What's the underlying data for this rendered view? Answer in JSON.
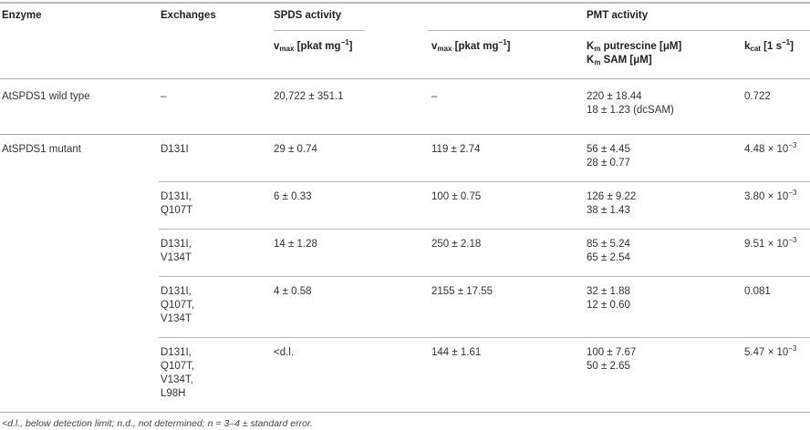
{
  "headers": {
    "enzyme": "Enzyme",
    "exchanges": "Exchanges",
    "spds": "SPDS activity",
    "pmt": "PMT activity",
    "vmax_v": "v",
    "vmax_sub": "max",
    "vmax_unit": " [pkat mg",
    "vmax_sup": "−1",
    "vmax_close": "]",
    "km_k": "K",
    "km_sub": "m",
    "km_put": " putrescine [μM]",
    "km_sam": " SAM [μM]",
    "kcat_k": "k",
    "kcat_sub": "cat",
    "kcat_unit": " [1 s",
    "kcat_sup": "−1",
    "kcat_close": "]"
  },
  "rows": [
    {
      "enzyme": "AtSPDS1 wild type",
      "exchanges": [
        "–"
      ],
      "spds_vmax": "20,722 ± 351.1",
      "pmt_vmax": "–",
      "km_put": "220 ± 18.44",
      "km_sam": "18 ± 1.23 (dcSAM)",
      "kcat": "0.722",
      "kcat_exp": ""
    },
    {
      "enzyme": "AtSPDS1 mutant",
      "exchanges": [
        "D131I"
      ],
      "spds_vmax": "29 ± 0.74",
      "pmt_vmax": "119 ± 2.74",
      "km_put": "56 ± 4.45",
      "km_sam": "28 ± 0.77",
      "kcat": "4.48 × 10",
      "kcat_exp": "−3"
    },
    {
      "exchanges": [
        "D131I,",
        "Q107T"
      ],
      "spds_vmax": "6 ± 0.33",
      "pmt_vmax": "100 ± 0.75",
      "km_put": "126 ± 9.22",
      "km_sam": "38 ± 1.43",
      "kcat": "3.80 × 10",
      "kcat_exp": "−3"
    },
    {
      "exchanges": [
        "D131I,",
        "V134T"
      ],
      "spds_vmax": "14 ± 1.28",
      "pmt_vmax": "250 ± 2.18",
      "km_put": "85 ± 5.24",
      "km_sam": "65 ± 2.54",
      "kcat": "9.51 × 10",
      "kcat_exp": "−3"
    },
    {
      "exchanges": [
        "D131I,",
        "Q107T,",
        "V134T"
      ],
      "spds_vmax": "4 ± 0.58",
      "pmt_vmax": "2155 ± 17.55",
      "km_put": "32 ± 1.88",
      "km_sam": "12 ± 0.60",
      "kcat": "0.081",
      "kcat_exp": ""
    },
    {
      "exchanges": [
        "D131I,",
        "Q107T,",
        "V134T,",
        "L98H"
      ],
      "spds_vmax": "<d.l.",
      "pmt_vmax": "144 ± 1.61",
      "km_put": "100 ± 7.67",
      "km_sam": "50 ± 2.65",
      "kcat": "5.47 × 10",
      "kcat_exp": "−3"
    }
  ],
  "footnote": "<d.l., below detection limit; n.d., not determined; n = 3–4 ± standard error."
}
